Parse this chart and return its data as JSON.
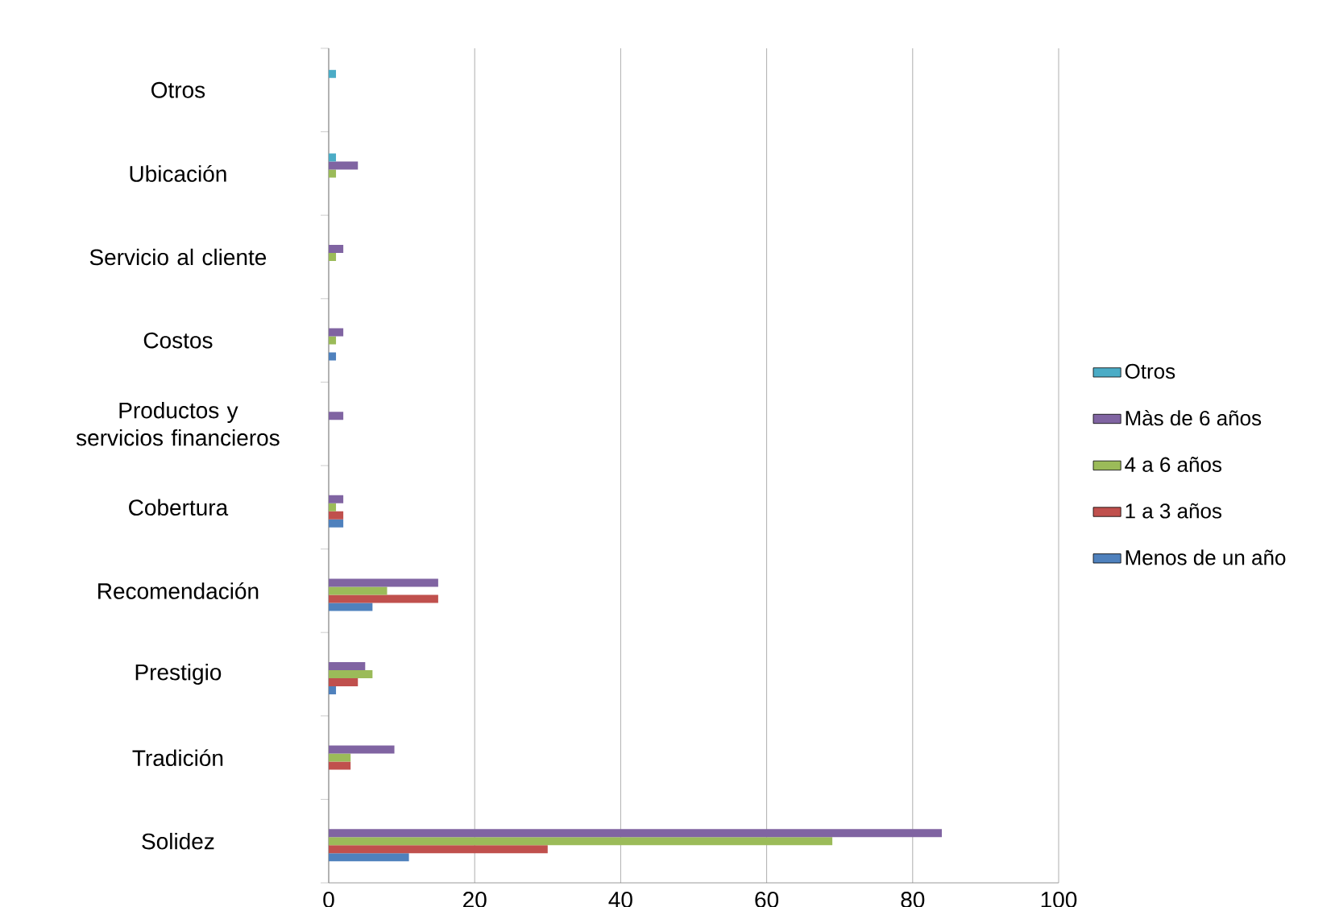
{
  "chart_data": {
    "type": "bar",
    "orientation": "horizontal",
    "categories": [
      "Otros",
      "Ubicación",
      "Servicio al cliente",
      "Costos",
      "Productos y servicios financieros",
      "Cobertura",
      "Recomendación",
      "Prestigio",
      "Tradición",
      "Solidez"
    ],
    "series": [
      {
        "name": "Menos de un año",
        "color": "#4f81bd",
        "values": [
          0,
          0,
          0,
          1,
          0,
          2,
          6,
          1,
          0,
          11
        ]
      },
      {
        "name": "1 a 3 años",
        "color": "#c0504d",
        "values": [
          0,
          0,
          0,
          0,
          0,
          2,
          15,
          4,
          3,
          30
        ]
      },
      {
        "name": "4 a 6 años",
        "color": "#9bbb59",
        "values": [
          0,
          1,
          1,
          1,
          0,
          1,
          8,
          6,
          3,
          69
        ]
      },
      {
        "name": "Màs de 6 años",
        "color": "#8064a2",
        "values": [
          0,
          4,
          2,
          2,
          2,
          2,
          15,
          5,
          9,
          84
        ]
      },
      {
        "name": "Otros",
        "color": "#4bacc6",
        "values": [
          1,
          1,
          0,
          0,
          0,
          0,
          0,
          0,
          0,
          0
        ]
      }
    ],
    "xlim": [
      0,
      100
    ],
    "xticks": [
      0,
      20,
      40,
      60,
      80,
      100
    ],
    "grid": "x",
    "legend": "right"
  }
}
